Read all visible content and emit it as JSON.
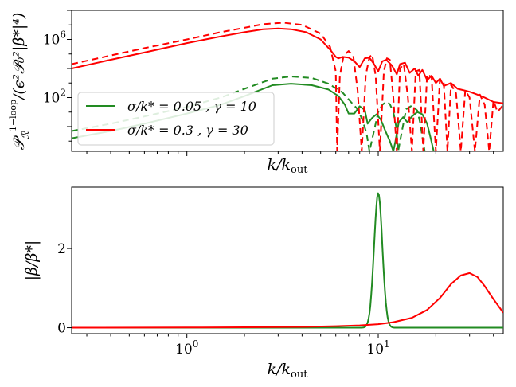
{
  "figure": {
    "description_domain": "physics-spectrum"
  },
  "chart_data": [
    {
      "type": "line",
      "scale": {
        "x": "log",
        "y": "log"
      },
      "xlabel": "k/k_out",
      "ylabel": "P_R^{1-loop} / (ε² P₀² |β*|⁴)",
      "xlim": [
        0.25,
        45
      ],
      "ylim_exp": [
        -1.7,
        8.0
      ],
      "yticks": [
        {
          "exp": 2,
          "label": "10²",
          "base": "10",
          "sup": "2"
        },
        {
          "exp": 6,
          "label": "10⁶",
          "base": "10",
          "sup": "6"
        }
      ],
      "xticks_labeled": [],
      "xlabel_base": "k/k",
      "xlabel_sub": "out",
      "ylabel_main": "𝒫",
      "ylabel_sub": "ℛ",
      "ylabel_sup": "1−loop",
      "ylabel_rest": "/(ϵ²𝒫₀²|β*|⁴)",
      "legend": [
        {
          "label": "σ/k* = 0.05 , γ = 10",
          "color": "#228B22"
        },
        {
          "label": "σ/k* = 0.3 , γ = 30",
          "color": "#ff0000"
        }
      ],
      "series": [
        {
          "name": "σ/k* = 0.05 , γ = 10 (solid)",
          "color": "#228B22",
          "dash": "none",
          "x": [
            0.25,
            0.4,
            0.6,
            1.0,
            1.5,
            2.0,
            2.8,
            3.5,
            4.5,
            5.5,
            6.2,
            6.7,
            7.0,
            7.5,
            8.0,
            8.5,
            8.8,
            9.3,
            9.8,
            10.3,
            10.9,
            11.5,
            12.0,
            12.3,
            12.8,
            13.5,
            14.2,
            15.0,
            16.0,
            17.0,
            18.0,
            18.8,
            19.5
          ],
          "log10y": [
            -0.8,
            -0.3,
            0.2,
            0.9,
            1.5,
            2.1,
            2.85,
            2.95,
            2.85,
            2.55,
            2.1,
            1.5,
            0.9,
            0.9,
            1.4,
            1.15,
            0.2,
            0.6,
            0.85,
            0.5,
            -0.3,
            -1.0,
            -1.7,
            -1.0,
            0.3,
            0.65,
            0.3,
            0.7,
            1.0,
            0.85,
            0.2,
            -0.8,
            -1.7
          ]
        },
        {
          "name": "σ/k* = 0.05 , γ = 10 (dashed)",
          "color": "#228B22",
          "dash": "8,5",
          "x": [
            0.25,
            0.4,
            0.6,
            1.0,
            1.5,
            2.0,
            2.8,
            3.5,
            4.5,
            5.5,
            6.5,
            7.2,
            7.8,
            8.3,
            8.7,
            9.0,
            9.5,
            10.0,
            10.5,
            11.0,
            11.5,
            12.0,
            12.4,
            12.7,
            13.3,
            14.0,
            15.0,
            16.0,
            16.6,
            17.0,
            17.5
          ],
          "log10y": [
            -0.3,
            0.2,
            0.7,
            1.35,
            2.0,
            2.6,
            3.3,
            3.45,
            3.35,
            2.95,
            2.35,
            1.7,
            1.2,
            0.4,
            -0.5,
            -1.7,
            -0.3,
            1.0,
            1.5,
            1.7,
            1.55,
            1.0,
            0.0,
            -1.7,
            -0.3,
            1.2,
            1.45,
            1.1,
            0.2,
            -0.7,
            -1.7
          ]
        },
        {
          "name": "σ/k* = 0.3 , γ = 30 (solid)",
          "color": "#ff0000",
          "dash": "none",
          "x": [
            0.25,
            0.4,
            0.6,
            1.0,
            1.5,
            2.0,
            2.5,
            3.0,
            3.5,
            4.2,
            5.0,
            5.6,
            6.0,
            6.2,
            6.5,
            7.0,
            7.5,
            8.0,
            8.5,
            9.0,
            9.5,
            10.0,
            10.5,
            11.0,
            11.8,
            12.5,
            13.0,
            13.8,
            14.6,
            15.5,
            16.2,
            17.0,
            18.0,
            19.0,
            20.0,
            21.0,
            22.0,
            24.0,
            26.0,
            28.0,
            30.0,
            33.0,
            36.0,
            40.0,
            45.0
          ],
          "log10y": [
            4.0,
            4.6,
            5.1,
            5.75,
            6.2,
            6.5,
            6.7,
            6.75,
            6.7,
            6.5,
            6.0,
            5.3,
            4.8,
            4.7,
            4.8,
            4.75,
            4.5,
            4.1,
            4.7,
            4.75,
            4.3,
            3.8,
            4.5,
            4.6,
            4.2,
            3.6,
            4.3,
            4.4,
            3.7,
            4.0,
            3.5,
            3.9,
            3.2,
            3.5,
            3.0,
            3.3,
            2.8,
            3.0,
            2.6,
            2.5,
            2.4,
            2.2,
            2.0,
            1.7,
            1.6
          ]
        },
        {
          "name": "σ/k* = 0.3 , γ = 30 (dashed)",
          "color": "#ff0000",
          "dash": "8,5",
          "x": [
            0.25,
            0.4,
            0.6,
            1.0,
            1.5,
            2.0,
            2.5,
            3.2,
            4.0,
            5.0,
            5.6,
            6.0,
            6.1,
            6.3,
            6.6,
            7.0,
            7.4,
            7.8,
            8.2,
            8.6,
            9.0,
            9.3,
            9.7,
            10.2,
            10.7,
            11.1,
            11.5,
            12.0,
            12.5,
            13.0,
            13.6,
            14.3,
            15.0,
            15.7,
            16.4,
            17.2,
            18.0,
            19.0,
            20.0,
            21.0,
            22.0,
            23.0,
            24.0,
            25.5,
            27.0,
            28.5,
            30.0,
            32.0,
            34.0,
            36.0,
            38.0,
            40.0,
            42.0,
            45.0
          ],
          "log10y": [
            4.3,
            4.9,
            5.4,
            6.0,
            6.5,
            6.8,
            7.05,
            7.15,
            7.0,
            6.4,
            5.5,
            3.8,
            -1.7,
            3.5,
            4.9,
            5.2,
            4.9,
            2.5,
            -1.7,
            3.5,
            4.8,
            4.95,
            3.5,
            -1.7,
            3.8,
            4.7,
            4.6,
            2.0,
            -1.7,
            4.0,
            4.3,
            2.0,
            -1.7,
            3.8,
            3.9,
            -1.7,
            3.6,
            3.4,
            -1.7,
            3.3,
            3.0,
            -1.7,
            2.9,
            2.3,
            -1.7,
            2.5,
            2.0,
            -1.7,
            2.2,
            1.5,
            -1.7,
            1.8,
            1.0,
            1.5
          ]
        }
      ]
    },
    {
      "type": "line",
      "scale": {
        "x": "log",
        "y": "linear"
      },
      "xlabel": "k/k_out",
      "ylabel": "|β/β*|",
      "xlabel_base": "k/k",
      "xlabel_sub": "out",
      "ylabel_text": "|β/β*|",
      "xlim": [
        0.25,
        45
      ],
      "ylim": [
        -0.15,
        3.55
      ],
      "yticks": [
        0,
        2
      ],
      "xticks_labeled": [
        {
          "value": 1,
          "label": "10⁰",
          "base": "10",
          "sup": "0"
        },
        {
          "value": 10,
          "label": "10¹",
          "base": "10",
          "sup": "1"
        }
      ],
      "series": [
        {
          "name": "σ/k* = 0.05 , γ = 10",
          "color": "#228B22",
          "model": {
            "kind": "lognormal",
            "amp": 3.4,
            "center": 10,
            "width": 0.05
          },
          "x": [
            0.25,
            1.0,
            8.0,
            8.8,
            9.2,
            9.5,
            9.7,
            9.85,
            10.0,
            10.15,
            10.3,
            10.5,
            10.8,
            11.2,
            12.0,
            45.0
          ],
          "values": [
            0,
            0,
            0.0,
            0.05,
            0.5,
            1.5,
            2.5,
            3.1,
            3.4,
            3.1,
            2.5,
            1.5,
            0.5,
            0.05,
            0.0,
            0
          ]
        },
        {
          "name": "σ/k* = 0.3 , γ = 30",
          "color": "#ff0000",
          "x": [
            0.25,
            1.0,
            2.0,
            4.0,
            6.0,
            8.0,
            10.0,
            12.0,
            15.0,
            18.0,
            21.0,
            24.0,
            27.0,
            30.0,
            33.0,
            36.0,
            40.0,
            45.0
          ],
          "values": [
            0.0,
            0.005,
            0.01,
            0.02,
            0.04,
            0.06,
            0.09,
            0.14,
            0.25,
            0.45,
            0.75,
            1.1,
            1.32,
            1.38,
            1.28,
            1.05,
            0.72,
            0.38
          ]
        }
      ]
    }
  ]
}
